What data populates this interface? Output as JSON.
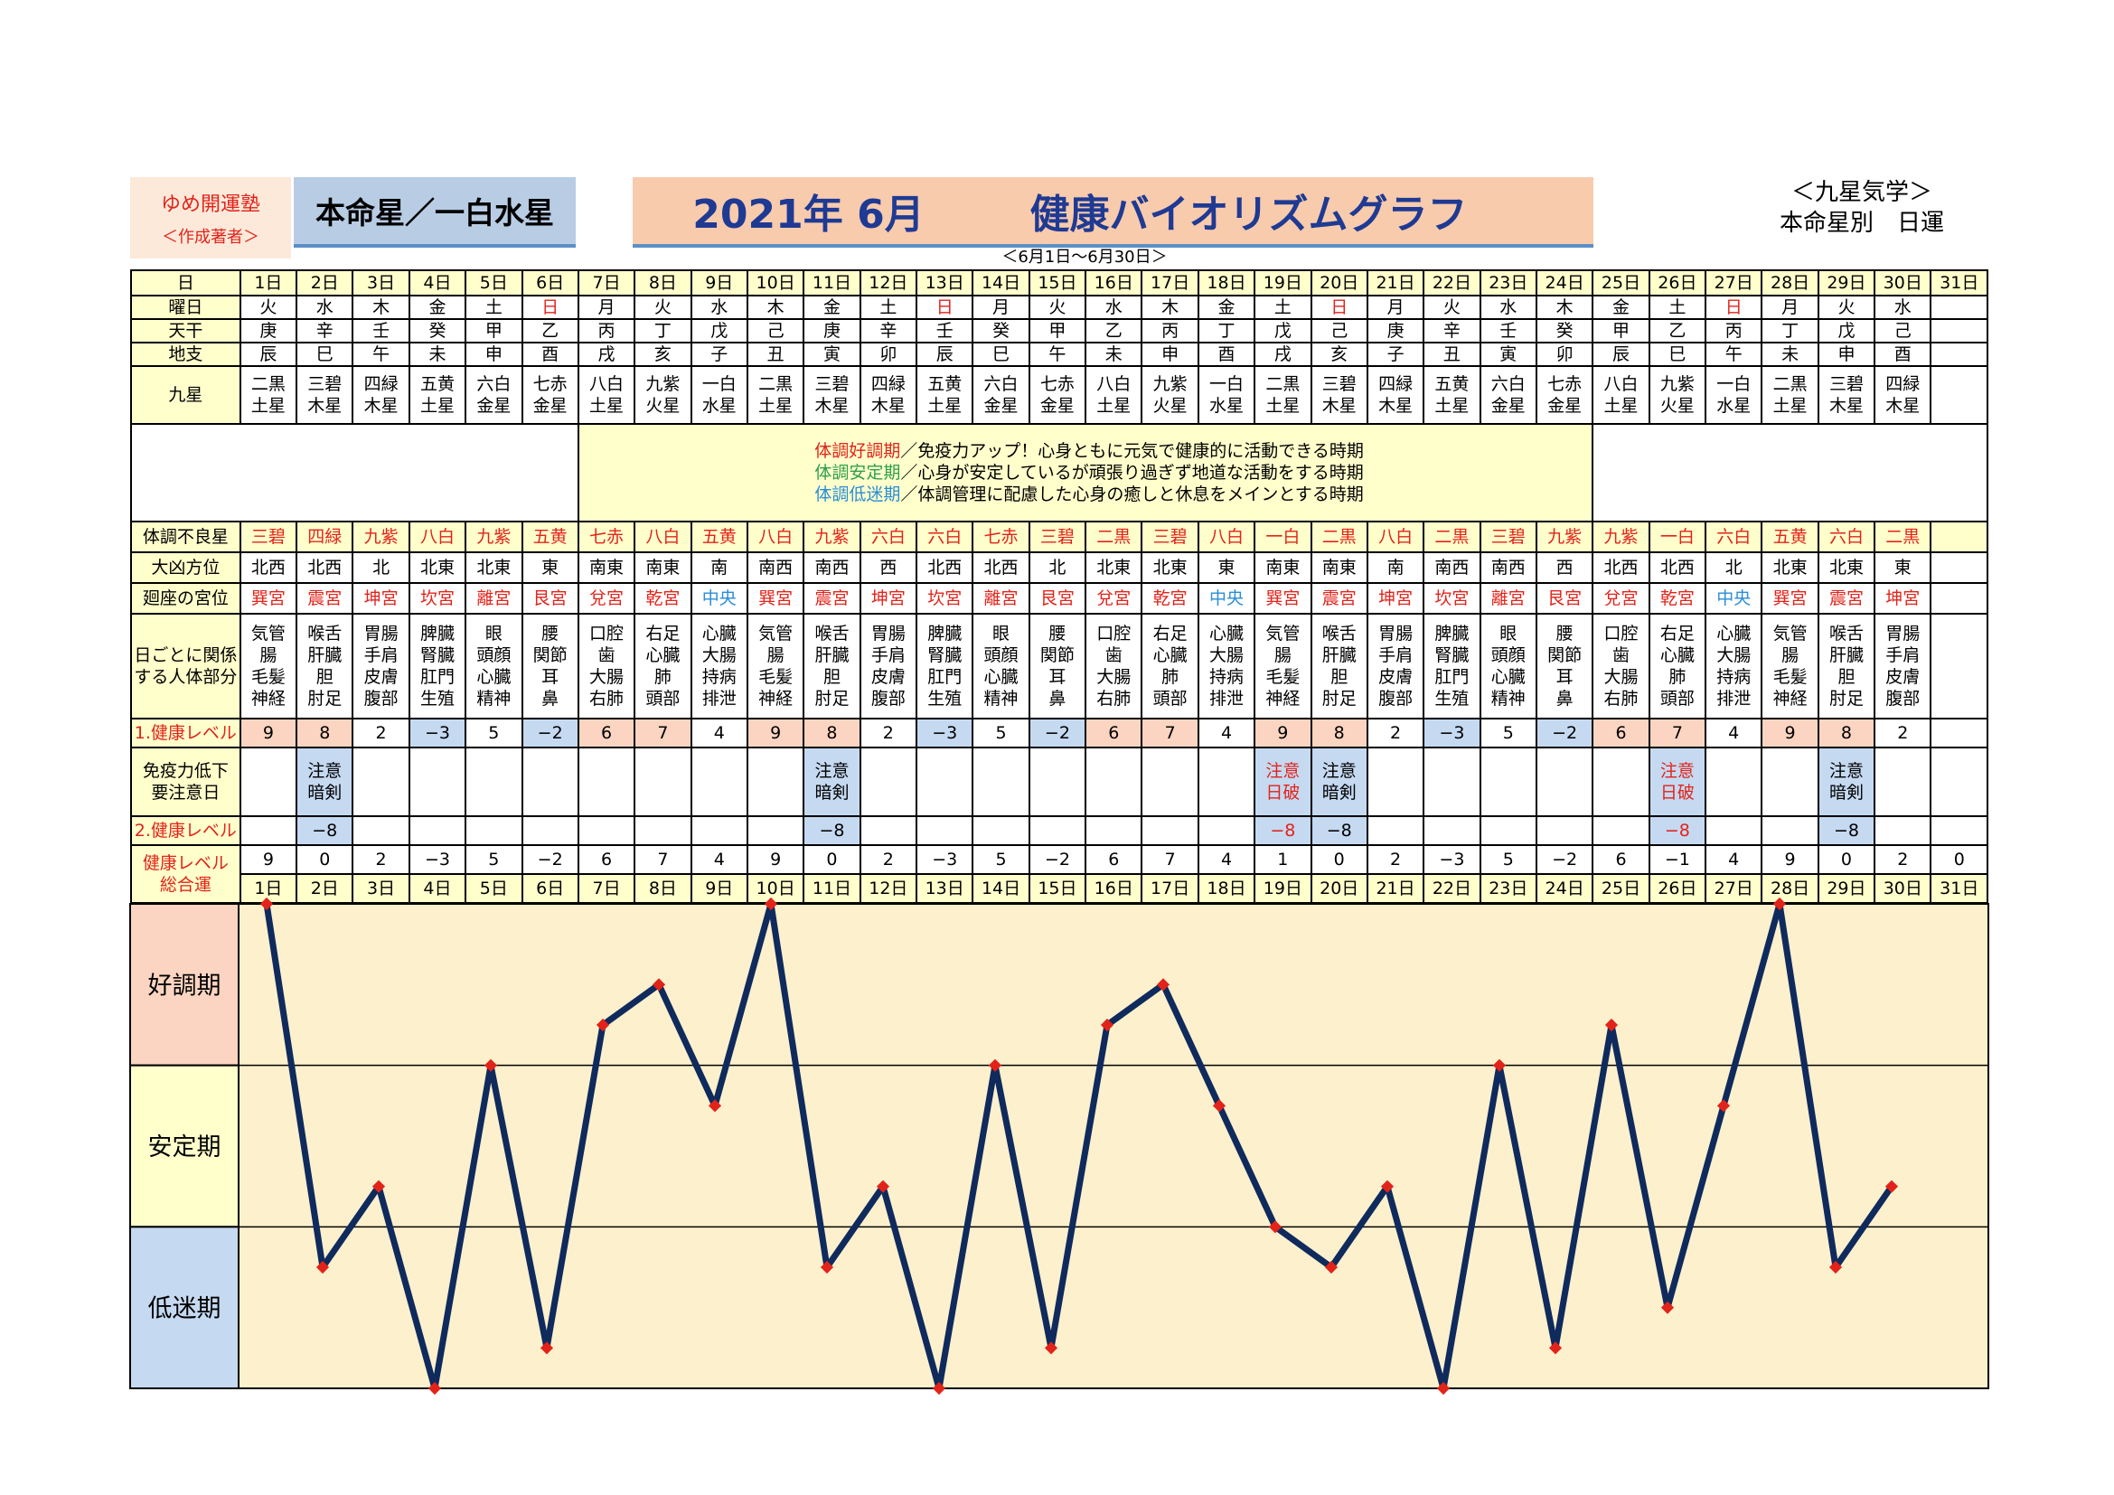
{
  "header": {
    "brand": "ゆめ開運塾",
    "brand_sub": "＜作成著者＞",
    "honmeisei": "本命星／一白水星",
    "title_date": "2021年 6月",
    "title_main": "健康バイオリズムグラフ",
    "kyusei_line1": "＜九星気学＞",
    "kyusei_line2": "本命星別　日運",
    "range": "＜6月1日～6月30日＞"
  },
  "labels": {
    "day": "日",
    "weekday": "曜日",
    "tenkan": "天干",
    "chishi": "地支",
    "kyusei": "九星",
    "furyo": "体調不良星",
    "daikyo": "大凶方位",
    "kaiza": "廻座の宮位",
    "body": "日ごとに関係する人体部分",
    "level1": "1.健康レベル",
    "men_ekiline1": "免疫力低下",
    "men_ekiline2": "要注意日",
    "level2": "2.健康レベル",
    "total1": "健康レベル",
    "total2": "総合運"
  },
  "notes": [
    {
      "key": "体調好調期",
      "text": "／免疫力アップ！心身ともに元気で健康的に活動できる時期",
      "color": "#e2231a"
    },
    {
      "key": "体調安定期",
      "text": "／心身が安定しているが頑張り過ぎず地道な活動をする時期",
      "color": "#2e9e4f"
    },
    {
      "key": "体調低迷期",
      "text": "／体調管理に配慮した心身の癒しと休息をメインとする時期",
      "color": "#2a8dd6"
    }
  ],
  "days": [
    "1日",
    "2日",
    "3日",
    "4日",
    "5日",
    "6日",
    "7日",
    "8日",
    "9日",
    "10日",
    "11日",
    "12日",
    "13日",
    "14日",
    "15日",
    "16日",
    "17日",
    "18日",
    "19日",
    "20日",
    "21日",
    "22日",
    "23日",
    "24日",
    "25日",
    "26日",
    "27日",
    "28日",
    "29日",
    "30日",
    "31日"
  ],
  "weekdays": [
    "火",
    "水",
    "木",
    "金",
    "土",
    "日",
    "月",
    "火",
    "水",
    "木",
    "金",
    "土",
    "日",
    "月",
    "火",
    "水",
    "木",
    "金",
    "土",
    "日",
    "月",
    "火",
    "水",
    "木",
    "金",
    "土",
    "日",
    "月",
    "火",
    "水",
    ""
  ],
  "tenkan": [
    "庚",
    "辛",
    "壬",
    "癸",
    "甲",
    "乙",
    "丙",
    "丁",
    "戊",
    "己",
    "庚",
    "辛",
    "壬",
    "癸",
    "甲",
    "乙",
    "丙",
    "丁",
    "戊",
    "己",
    "庚",
    "辛",
    "壬",
    "癸",
    "甲",
    "乙",
    "丙",
    "丁",
    "戊",
    "己",
    ""
  ],
  "chishi": [
    "辰",
    "巳",
    "午",
    "未",
    "申",
    "酉",
    "戌",
    "亥",
    "子",
    "丑",
    "寅",
    "卯",
    "辰",
    "巳",
    "午",
    "未",
    "申",
    "酉",
    "戌",
    "亥",
    "子",
    "丑",
    "寅",
    "卯",
    "辰",
    "巳",
    "午",
    "未",
    "申",
    "酉",
    ""
  ],
  "kyusei": [
    [
      "二黒",
      "土星"
    ],
    [
      "三碧",
      "木星"
    ],
    [
      "四緑",
      "木星"
    ],
    [
      "五黄",
      "土星"
    ],
    [
      "六白",
      "金星"
    ],
    [
      "七赤",
      "金星"
    ],
    [
      "八白",
      "土星"
    ],
    [
      "九紫",
      "火星"
    ],
    [
      "一白",
      "水星"
    ],
    [
      "二黒",
      "土星"
    ],
    [
      "三碧",
      "木星"
    ],
    [
      "四緑",
      "木星"
    ],
    [
      "五黄",
      "土星"
    ],
    [
      "六白",
      "金星"
    ],
    [
      "七赤",
      "金星"
    ],
    [
      "八白",
      "土星"
    ],
    [
      "九紫",
      "火星"
    ],
    [
      "一白",
      "水星"
    ],
    [
      "二黒",
      "土星"
    ],
    [
      "三碧",
      "木星"
    ],
    [
      "四緑",
      "木星"
    ],
    [
      "五黄",
      "土星"
    ],
    [
      "六白",
      "金星"
    ],
    [
      "七赤",
      "金星"
    ],
    [
      "八白",
      "土星"
    ],
    [
      "九紫",
      "火星"
    ],
    [
      "一白",
      "水星"
    ],
    [
      "二黒",
      "土星"
    ],
    [
      "三碧",
      "木星"
    ],
    [
      "四緑",
      "木星"
    ],
    [
      "",
      ""
    ]
  ],
  "furyo": [
    "三碧",
    "四緑",
    "九紫",
    "八白",
    "九紫",
    "五黄",
    "七赤",
    "八白",
    "五黄",
    "八白",
    "九紫",
    "六白",
    "六白",
    "七赤",
    "三碧",
    "二黒",
    "三碧",
    "八白",
    "一白",
    "二黒",
    "八白",
    "二黒",
    "三碧",
    "九紫",
    "九紫",
    "一白",
    "六白",
    "五黄",
    "六白",
    "二黒",
    ""
  ],
  "daikyo": [
    "北西",
    "北西",
    "北",
    "北東",
    "北東",
    "東",
    "南東",
    "南東",
    "南",
    "南西",
    "南西",
    "西",
    "北西",
    "北西",
    "北",
    "北東",
    "北東",
    "東",
    "南東",
    "南東",
    "南",
    "南西",
    "南西",
    "西",
    "北西",
    "北西",
    "北",
    "北東",
    "北東",
    "東",
    ""
  ],
  "kaiza": [
    "巽宮",
    "震宮",
    "坤宮",
    "坎宮",
    "離宮",
    "艮宮",
    "兌宮",
    "乾宮",
    "中央",
    "巽宮",
    "震宮",
    "坤宮",
    "坎宮",
    "離宮",
    "艮宮",
    "兌宮",
    "乾宮",
    "中央",
    "巽宮",
    "震宮",
    "坤宮",
    "坎宮",
    "離宮",
    "艮宮",
    "兌宮",
    "乾宮",
    "中央",
    "巽宮",
    "震宮",
    "坤宮",
    ""
  ],
  "body": [
    [
      "気管",
      "腸",
      "毛髪",
      "神経"
    ],
    [
      "喉舌",
      "肝臓",
      "胆",
      "肘足"
    ],
    [
      "胃腸",
      "手肩",
      "皮膚",
      "腹部"
    ],
    [
      "脾臓",
      "腎臓",
      "肛門",
      "生殖"
    ],
    [
      "眼",
      "頭顔",
      "心臓",
      "精神"
    ],
    [
      "腰",
      "関節",
      "耳",
      "鼻"
    ],
    [
      "口腔",
      "歯",
      "大腸",
      "右肺"
    ],
    [
      "右足",
      "心臓",
      "肺",
      "頭部"
    ],
    [
      "心臓",
      "大腸",
      "持病",
      "排泄"
    ],
    [
      "気管",
      "腸",
      "毛髪",
      "神経"
    ],
    [
      "喉舌",
      "肝臓",
      "胆",
      "肘足"
    ],
    [
      "胃腸",
      "手肩",
      "皮膚",
      "腹部"
    ],
    [
      "脾臓",
      "腎臓",
      "肛門",
      "生殖"
    ],
    [
      "眼",
      "頭顔",
      "心臓",
      "精神"
    ],
    [
      "腰",
      "関節",
      "耳",
      "鼻"
    ],
    [
      "口腔",
      "歯",
      "大腸",
      "右肺"
    ],
    [
      "右足",
      "心臓",
      "肺",
      "頭部"
    ],
    [
      "心臓",
      "大腸",
      "持病",
      "排泄"
    ],
    [
      "気管",
      "腸",
      "毛髪",
      "神経"
    ],
    [
      "喉舌",
      "肝臓",
      "胆",
      "肘足"
    ],
    [
      "胃腸",
      "手肩",
      "皮膚",
      "腹部"
    ],
    [
      "脾臓",
      "腎臓",
      "肛門",
      "生殖"
    ],
    [
      "眼",
      "頭顔",
      "心臓",
      "精神"
    ],
    [
      "腰",
      "関節",
      "耳",
      "鼻"
    ],
    [
      "口腔",
      "歯",
      "大腸",
      "右肺"
    ],
    [
      "右足",
      "心臓",
      "肺",
      "頭部"
    ],
    [
      "心臓",
      "大腸",
      "持病",
      "排泄"
    ],
    [
      "気管",
      "腸",
      "毛髪",
      "神経"
    ],
    [
      "喉舌",
      "肝臓",
      "胆",
      "肘足"
    ],
    [
      "胃腸",
      "手肩",
      "皮膚",
      "腹部"
    ],
    [
      "",
      "",
      "",
      ""
    ]
  ],
  "level1": [
    "9",
    "8",
    "2",
    "−3",
    "5",
    "−2",
    "6",
    "7",
    "4",
    "9",
    "8",
    "2",
    "−3",
    "5",
    "−2",
    "6",
    "7",
    "4",
    "9",
    "8",
    "2",
    "−3",
    "5",
    "−2",
    "6",
    "7",
    "4",
    "9",
    "8",
    "2",
    ""
  ],
  "caution": [
    [
      "",
      ""
    ],
    [
      "注意",
      "暗剣"
    ],
    [
      "",
      ""
    ],
    [
      "",
      ""
    ],
    [
      "",
      ""
    ],
    [
      "",
      ""
    ],
    [
      "",
      ""
    ],
    [
      "",
      ""
    ],
    [
      "",
      ""
    ],
    [
      "",
      ""
    ],
    [
      "注意",
      "暗剣"
    ],
    [
      "",
      ""
    ],
    [
      "",
      ""
    ],
    [
      "",
      ""
    ],
    [
      "",
      ""
    ],
    [
      "",
      ""
    ],
    [
      "",
      ""
    ],
    [
      "",
      ""
    ],
    [
      "注意",
      "日破"
    ],
    [
      "注意",
      "暗剣"
    ],
    [
      "",
      ""
    ],
    [
      "",
      ""
    ],
    [
      "",
      ""
    ],
    [
      "",
      ""
    ],
    [
      "",
      ""
    ],
    [
      "注意",
      "日破"
    ],
    [
      "",
      ""
    ],
    [
      "",
      ""
    ],
    [
      "注意",
      "暗剣"
    ],
    [
      "",
      ""
    ],
    [
      "",
      ""
    ]
  ],
  "level2": [
    "",
    "−8",
    "",
    "",
    "",
    "",
    "",
    "",
    "",
    "",
    "−8",
    "",
    "",
    "",
    "",
    "",
    "",
    "",
    "−8",
    "−8",
    "",
    "",
    "",
    "",
    "",
    "−8",
    "",
    "",
    "−8",
    "",
    ""
  ],
  "total": [
    "9",
    "0",
    "2",
    "−3",
    "5",
    "−2",
    "6",
    "7",
    "4",
    "9",
    "0",
    "2",
    "−3",
    "5",
    "−2",
    "6",
    "7",
    "4",
    "1",
    "0",
    "2",
    "−3",
    "5",
    "−2",
    "6",
    "−1",
    "4",
    "9",
    "0",
    "2",
    "0"
  ],
  "chart_bands": [
    "好調期",
    "安定期",
    "低迷期"
  ],
  "colors": {
    "yellow": "#ffffcc",
    "pink": "#fbd5c1",
    "blue": "#c5d9f1",
    "chart_bg": "#fdf0cd",
    "line": "#0f2a5c",
    "marker": "#e2231a",
    "red_text": "#e2231a"
  },
  "chart_data": {
    "type": "line",
    "categories": [
      "1日",
      "2日",
      "3日",
      "4日",
      "5日",
      "6日",
      "7日",
      "8日",
      "9日",
      "10日",
      "11日",
      "12日",
      "13日",
      "14日",
      "15日",
      "16日",
      "17日",
      "18日",
      "19日",
      "20日",
      "21日",
      "22日",
      "23日",
      "24日",
      "25日",
      "26日",
      "27日",
      "28日",
      "29日",
      "30日"
    ],
    "values": [
      9,
      0,
      2,
      -3,
      5,
      -2,
      6,
      7,
      4,
      9,
      0,
      2,
      -3,
      5,
      -2,
      6,
      7,
      4,
      1,
      0,
      2,
      -3,
      5,
      -2,
      6,
      -1,
      4,
      9,
      0,
      2
    ],
    "ylim": [
      -3,
      9
    ],
    "grid": true,
    "bands": [
      "好調期",
      "安定期",
      "低迷期"
    ]
  }
}
